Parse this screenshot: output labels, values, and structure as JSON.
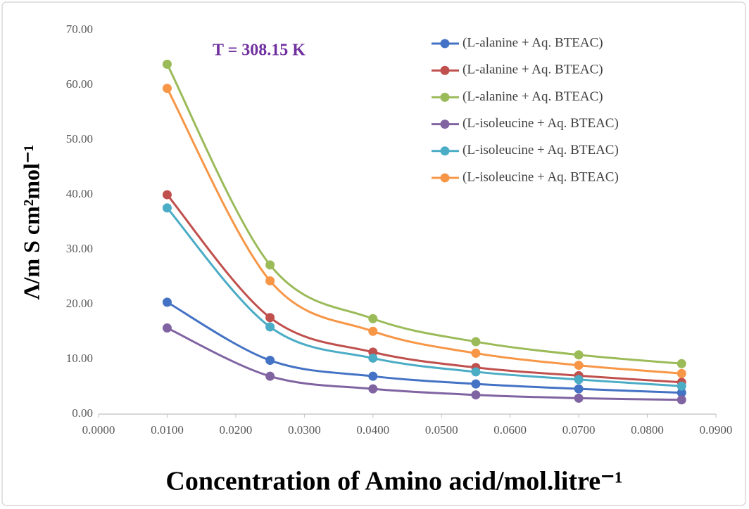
{
  "chart_data": {
    "type": "line",
    "annotation": "T = 308.15 K",
    "xlabel": "Concentration of Amino acid/mol.litre⁻¹",
    "ylabel": "Λ/m S cm²mol⁻¹",
    "x": [
      0.01,
      0.025,
      0.04,
      0.055,
      0.07,
      0.085
    ],
    "series": [
      {
        "name": "(L-alanine + Aq. BTEAC)",
        "color": "#4472c4",
        "values": [
          20.4,
          9.8,
          6.9,
          5.5,
          4.6,
          3.9
        ]
      },
      {
        "name": "(L-alanine + Aq. BTEAC)",
        "color": "#c0504d",
        "values": [
          40.0,
          17.6,
          11.3,
          8.5,
          7.0,
          5.8
        ]
      },
      {
        "name": "(L-alanine + Aq. BTEAC)",
        "color": "#9bbb59",
        "values": [
          63.8,
          27.2,
          17.4,
          13.2,
          10.8,
          9.2
        ]
      },
      {
        "name": "(L-isoleucine + Aq. BTEAC)",
        "color": "#8064a2",
        "values": [
          15.7,
          6.9,
          4.6,
          3.5,
          2.9,
          2.6
        ]
      },
      {
        "name": "(L-isoleucine + Aq. BTEAC)",
        "color": "#4bacc6",
        "values": [
          37.6,
          15.9,
          10.2,
          7.7,
          6.3,
          5.1
        ]
      },
      {
        "name": "(L-isoleucine + Aq. BTEAC)",
        "color": "#f79646",
        "values": [
          59.4,
          24.3,
          15.1,
          11.1,
          8.9,
          7.4
        ]
      }
    ],
    "xlim": [
      0,
      0.09
    ],
    "xticks": [
      {
        "value": 0,
        "label": "0.0000"
      },
      {
        "value": 0.01,
        "label": "0.0100"
      },
      {
        "value": 0.02,
        "label": "0.0200"
      },
      {
        "value": 0.03,
        "label": "0.0300"
      },
      {
        "value": 0.04,
        "label": "0.0400"
      },
      {
        "value": 0.05,
        "label": "0.0500"
      },
      {
        "value": 0.06,
        "label": "0.0600"
      },
      {
        "value": 0.07,
        "label": "0.0700"
      },
      {
        "value": 0.08,
        "label": "0.0800"
      },
      {
        "value": 0.09,
        "label": "0.0900"
      }
    ],
    "ylim": [
      0,
      70
    ],
    "yticks": [
      {
        "value": 0,
        "label": "0.00"
      },
      {
        "value": 10,
        "label": "10.00"
      },
      {
        "value": 20,
        "label": "20.00"
      },
      {
        "value": 30,
        "label": "30.00"
      },
      {
        "value": 40,
        "label": "40.00"
      },
      {
        "value": 50,
        "label": "50.00"
      },
      {
        "value": 60,
        "label": "60.00"
      },
      {
        "value": 70,
        "label": "70.00"
      }
    ],
    "grid": false,
    "smooth": true,
    "legend": "top-right"
  }
}
